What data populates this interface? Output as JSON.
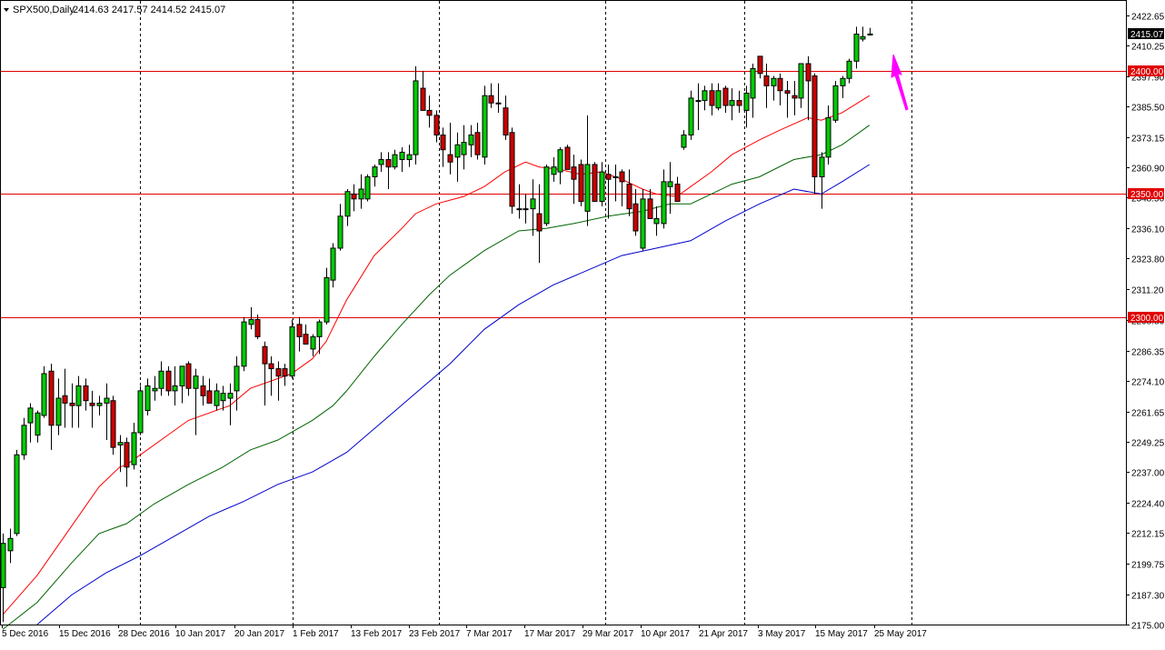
{
  "header": {
    "symbol_timeframe": "SPX500,Daily",
    "ohlc": "2414.63 2417.57 2414.52 2415.07"
  },
  "colors": {
    "background": "#ffffff",
    "frame": "#000000",
    "bull_candle": "#00cc00",
    "bear_candle": "#cc0000",
    "wick": "#000000",
    "ma_fast": "#ff0000",
    "ma_mid": "#006400",
    "ma_slow": "#0000cc",
    "level_line": "#e00000",
    "arrow": "#ff00ff"
  },
  "chart_data": {
    "type": "candlestick",
    "title": "",
    "xlabel": "",
    "ylabel": "",
    "ylim": [
      2175.0,
      2428.5
    ],
    "y_ticks": [
      "2422.65",
      "2410.25",
      "2397.90",
      "2385.50",
      "2373.15",
      "2360.90",
      "2348.50",
      "2336.10",
      "2323.80",
      "2311.20",
      "2298.80",
      "2286.35",
      "2274.10",
      "2261.65",
      "2249.25",
      "2237.00",
      "2224.40",
      "2212.15",
      "2199.75",
      "2187.30",
      "2175.00"
    ],
    "x_ticks": [
      "5 Dec 2016",
      "15 Dec 2016",
      "28 Dec 2016",
      "10 Jan 2017",
      "20 Jan 2017",
      "1 Feb 2017",
      "13 Feb 2017",
      "23 Feb 2017",
      "7 Mar 2017",
      "17 Mar 2017",
      "29 Mar 2017",
      "10 Apr 2017",
      "21 Apr 2017",
      "3 May 2017",
      "15 May 2017",
      "25 May 2017"
    ],
    "candles": [
      {
        "o": 2190,
        "h": 2212,
        "l": 2176,
        "c": 2208
      },
      {
        "o": 2205,
        "h": 2214,
        "l": 2200,
        "c": 2210
      },
      {
        "o": 2212,
        "h": 2246,
        "l": 2211,
        "c": 2244
      },
      {
        "o": 2244,
        "h": 2259,
        "l": 2242,
        "c": 2256
      },
      {
        "o": 2257,
        "h": 2265,
        "l": 2249,
        "c": 2263
      },
      {
        "o": 2252,
        "h": 2262,
        "l": 2249,
        "c": 2261
      },
      {
        "o": 2260,
        "h": 2280,
        "l": 2259,
        "c": 2277
      },
      {
        "o": 2278,
        "h": 2281,
        "l": 2246,
        "c": 2256
      },
      {
        "o": 2256,
        "h": 2275,
        "l": 2252,
        "c": 2267
      },
      {
        "o": 2268,
        "h": 2279,
        "l": 2255,
        "c": 2265
      },
      {
        "o": 2265,
        "h": 2273,
        "l": 2255,
        "c": 2264
      },
      {
        "o": 2264,
        "h": 2276,
        "l": 2255,
        "c": 2272
      },
      {
        "o": 2272,
        "h": 2275,
        "l": 2262,
        "c": 2266
      },
      {
        "o": 2265,
        "h": 2270,
        "l": 2255,
        "c": 2264
      },
      {
        "o": 2264,
        "h": 2268,
        "l": 2260,
        "c": 2265
      },
      {
        "o": 2265,
        "h": 2273,
        "l": 2250,
        "c": 2267
      },
      {
        "o": 2266,
        "h": 2268,
        "l": 2244,
        "c": 2247
      },
      {
        "o": 2248,
        "h": 2252,
        "l": 2237,
        "c": 2249
      },
      {
        "o": 2249,
        "h": 2251,
        "l": 2231,
        "c": 2239
      },
      {
        "o": 2240,
        "h": 2257,
        "l": 2238,
        "c": 2253
      },
      {
        "o": 2253,
        "h": 2272,
        "l": 2252,
        "c": 2270
      },
      {
        "o": 2262,
        "h": 2275,
        "l": 2260,
        "c": 2272
      },
      {
        "o": 2270,
        "h": 2276,
        "l": 2266,
        "c": 2271
      },
      {
        "o": 2271,
        "h": 2282,
        "l": 2268,
        "c": 2278
      },
      {
        "o": 2278,
        "h": 2280,
        "l": 2268,
        "c": 2270
      },
      {
        "o": 2270,
        "h": 2280,
        "l": 2264,
        "c": 2272
      },
      {
        "o": 2272,
        "h": 2279,
        "l": 2265,
        "c": 2280
      },
      {
        "o": 2281,
        "h": 2282,
        "l": 2268,
        "c": 2271
      },
      {
        "o": 2271,
        "h": 2279,
        "l": 2252,
        "c": 2276
      },
      {
        "o": 2272,
        "h": 2276,
        "l": 2264,
        "c": 2268
      },
      {
        "o": 2270,
        "h": 2275,
        "l": 2265,
        "c": 2265
      },
      {
        "o": 2264,
        "h": 2273,
        "l": 2262,
        "c": 2270
      },
      {
        "o": 2266,
        "h": 2272,
        "l": 2262,
        "c": 2269
      },
      {
        "o": 2267,
        "h": 2273,
        "l": 2256,
        "c": 2269
      },
      {
        "o": 2270,
        "h": 2284,
        "l": 2262,
        "c": 2280
      },
      {
        "o": 2280,
        "h": 2300,
        "l": 2278,
        "c": 2298
      },
      {
        "o": 2297,
        "h": 2304,
        "l": 2295,
        "c": 2299
      },
      {
        "o": 2299,
        "h": 2301,
        "l": 2291,
        "c": 2292
      },
      {
        "o": 2288,
        "h": 2290,
        "l": 2264,
        "c": 2281
      },
      {
        "o": 2281,
        "h": 2284,
        "l": 2268,
        "c": 2279
      },
      {
        "o": 2279,
        "h": 2282,
        "l": 2266,
        "c": 2276
      },
      {
        "o": 2279,
        "h": 2281,
        "l": 2272,
        "c": 2276
      },
      {
        "o": 2276,
        "h": 2299,
        "l": 2275,
        "c": 2296
      },
      {
        "o": 2297,
        "h": 2300,
        "l": 2286,
        "c": 2292
      },
      {
        "o": 2293,
        "h": 2297,
        "l": 2289,
        "c": 2289
      },
      {
        "o": 2287,
        "h": 2293,
        "l": 2284,
        "c": 2292
      },
      {
        "o": 2292,
        "h": 2299,
        "l": 2285,
        "c": 2298
      },
      {
        "o": 2298,
        "h": 2320,
        "l": 2297,
        "c": 2316
      },
      {
        "o": 2315,
        "h": 2330,
        "l": 2312,
        "c": 2328
      },
      {
        "o": 2328,
        "h": 2346,
        "l": 2327,
        "c": 2341
      },
      {
        "o": 2341,
        "h": 2352,
        "l": 2337,
        "c": 2351
      },
      {
        "o": 2350,
        "h": 2354,
        "l": 2343,
        "c": 2348
      },
      {
        "o": 2348,
        "h": 2358,
        "l": 2344,
        "c": 2352
      },
      {
        "o": 2348,
        "h": 2358,
        "l": 2347,
        "c": 2357
      },
      {
        "o": 2357,
        "h": 2362,
        "l": 2353,
        "c": 2361
      },
      {
        "o": 2362,
        "h": 2367,
        "l": 2359,
        "c": 2364
      },
      {
        "o": 2364,
        "h": 2367,
        "l": 2352,
        "c": 2361
      },
      {
        "o": 2361,
        "h": 2368,
        "l": 2360,
        "c": 2366
      },
      {
        "o": 2364,
        "h": 2369,
        "l": 2359,
        "c": 2367
      },
      {
        "o": 2364,
        "h": 2370,
        "l": 2361,
        "c": 2366
      },
      {
        "o": 2366,
        "h": 2402,
        "l": 2362,
        "c": 2396
      },
      {
        "o": 2393,
        "h": 2400,
        "l": 2385,
        "c": 2384
      },
      {
        "o": 2384,
        "h": 2390,
        "l": 2377,
        "c": 2382
      },
      {
        "o": 2382,
        "h": 2384,
        "l": 2371,
        "c": 2374
      },
      {
        "o": 2374,
        "h": 2377,
        "l": 2361,
        "c": 2368
      },
      {
        "o": 2366,
        "h": 2379,
        "l": 2358,
        "c": 2363
      },
      {
        "o": 2365,
        "h": 2375,
        "l": 2355,
        "c": 2370
      },
      {
        "o": 2366,
        "h": 2378,
        "l": 2360,
        "c": 2371
      },
      {
        "o": 2370,
        "h": 2378,
        "l": 2365,
        "c": 2374
      },
      {
        "o": 2375,
        "h": 2379,
        "l": 2364,
        "c": 2366
      },
      {
        "o": 2365,
        "h": 2394,
        "l": 2362,
        "c": 2390
      },
      {
        "o": 2390,
        "h": 2395,
        "l": 2385,
        "c": 2387
      },
      {
        "o": 2387,
        "h": 2395,
        "l": 2383,
        "c": 2387
      },
      {
        "o": 2385,
        "h": 2390,
        "l": 2372,
        "c": 2374
      },
      {
        "o": 2375,
        "h": 2377,
        "l": 2342,
        "c": 2345
      },
      {
        "o": 2344,
        "h": 2354,
        "l": 2340,
        "c": 2344
      },
      {
        "o": 2344,
        "h": 2350,
        "l": 2338,
        "c": 2344
      },
      {
        "o": 2344,
        "h": 2356,
        "l": 2333,
        "c": 2348
      },
      {
        "o": 2342,
        "h": 2354,
        "l": 2322,
        "c": 2335
      },
      {
        "o": 2338,
        "h": 2362,
        "l": 2337,
        "c": 2361
      },
      {
        "o": 2358,
        "h": 2365,
        "l": 2355,
        "c": 2361
      },
      {
        "o": 2359,
        "h": 2369,
        "l": 2354,
        "c": 2368
      },
      {
        "o": 2369,
        "h": 2370,
        "l": 2360,
        "c": 2360
      },
      {
        "o": 2361,
        "h": 2366,
        "l": 2346,
        "c": 2356
      },
      {
        "o": 2362,
        "h": 2364,
        "l": 2345,
        "c": 2347
      },
      {
        "o": 2343,
        "h": 2382,
        "l": 2337,
        "c": 2362
      },
      {
        "o": 2362,
        "h": 2363,
        "l": 2347,
        "c": 2347
      },
      {
        "o": 2347,
        "h": 2363,
        "l": 2345,
        "c": 2359
      },
      {
        "o": 2358,
        "h": 2362,
        "l": 2340,
        "c": 2356
      },
      {
        "o": 2357,
        "h": 2362,
        "l": 2347,
        "c": 2357
      },
      {
        "o": 2359,
        "h": 2360,
        "l": 2345,
        "c": 2355
      },
      {
        "o": 2354,
        "h": 2360,
        "l": 2341,
        "c": 2344
      },
      {
        "o": 2346,
        "h": 2352,
        "l": 2333,
        "c": 2335
      },
      {
        "o": 2328,
        "h": 2352,
        "l": 2327,
        "c": 2348
      },
      {
        "o": 2348,
        "h": 2352,
        "l": 2340,
        "c": 2340
      },
      {
        "o": 2338,
        "h": 2345,
        "l": 2333,
        "c": 2340
      },
      {
        "o": 2338,
        "h": 2360,
        "l": 2336,
        "c": 2355
      },
      {
        "o": 2353,
        "h": 2363,
        "l": 2342,
        "c": 2355
      },
      {
        "o": 2354,
        "h": 2357,
        "l": 2347,
        "c": 2347
      },
      {
        "o": 2369,
        "h": 2376,
        "l": 2368,
        "c": 2374
      },
      {
        "o": 2374,
        "h": 2392,
        "l": 2372,
        "c": 2389
      },
      {
        "o": 2388,
        "h": 2395,
        "l": 2376,
        "c": 2388
      },
      {
        "o": 2388,
        "h": 2394,
        "l": 2384,
        "c": 2392
      },
      {
        "o": 2392,
        "h": 2395,
        "l": 2382,
        "c": 2386
      },
      {
        "o": 2385,
        "h": 2395,
        "l": 2384,
        "c": 2392
      },
      {
        "o": 2393,
        "h": 2394,
        "l": 2383,
        "c": 2386
      },
      {
        "o": 2386,
        "h": 2393,
        "l": 2380,
        "c": 2388
      },
      {
        "o": 2388,
        "h": 2392,
        "l": 2383,
        "c": 2386
      },
      {
        "o": 2384,
        "h": 2394,
        "l": 2377,
        "c": 2391
      },
      {
        "o": 2389,
        "h": 2403,
        "l": 2381,
        "c": 2401
      },
      {
        "o": 2406,
        "h": 2406,
        "l": 2397,
        "c": 2399
      },
      {
        "o": 2398,
        "h": 2403,
        "l": 2385,
        "c": 2394
      },
      {
        "o": 2394,
        "h": 2398,
        "l": 2388,
        "c": 2397
      },
      {
        "o": 2397,
        "h": 2399,
        "l": 2386,
        "c": 2392
      },
      {
        "o": 2392,
        "h": 2396,
        "l": 2381,
        "c": 2391
      },
      {
        "o": 2390,
        "h": 2396,
        "l": 2382,
        "c": 2389
      },
      {
        "o": 2389,
        "h": 2403,
        "l": 2385,
        "c": 2403
      },
      {
        "o": 2403,
        "h": 2406,
        "l": 2380,
        "c": 2396
      },
      {
        "o": 2398,
        "h": 2399,
        "l": 2350,
        "c": 2357
      },
      {
        "o": 2357,
        "h": 2367,
        "l": 2344,
        "c": 2365
      },
      {
        "o": 2365,
        "h": 2386,
        "l": 2362,
        "c": 2381
      },
      {
        "o": 2380,
        "h": 2396,
        "l": 2379,
        "c": 2394
      },
      {
        "o": 2394,
        "h": 2398,
        "l": 2389,
        "c": 2397
      },
      {
        "o": 2397,
        "h": 2405,
        "l": 2395,
        "c": 2404
      },
      {
        "o": 2404,
        "h": 2418,
        "l": 2401,
        "c": 2415
      },
      {
        "o": 2413,
        "h": 2418,
        "l": 2412,
        "c": 2414
      },
      {
        "o": 2414.63,
        "h": 2417.57,
        "l": 2414.52,
        "c": 2415.07
      }
    ],
    "series": [
      {
        "name": "",
        "color": "#ff0000",
        "points": [
          [
            0,
            2179
          ],
          [
            5,
            2195
          ],
          [
            10,
            2215
          ],
          [
            14,
            2231
          ],
          [
            17,
            2239
          ],
          [
            18,
            2240
          ],
          [
            20,
            2244
          ],
          [
            24,
            2252
          ],
          [
            27,
            2258
          ],
          [
            33,
            2264
          ],
          [
            36,
            2271
          ],
          [
            39,
            2274
          ],
          [
            42,
            2277
          ],
          [
            45,
            2283
          ],
          [
            47,
            2290
          ],
          [
            50,
            2307
          ],
          [
            54,
            2325
          ],
          [
            58,
            2336
          ],
          [
            60,
            2342
          ],
          [
            63,
            2346
          ],
          [
            67,
            2349
          ],
          [
            70,
            2353
          ],
          [
            73,
            2359
          ],
          [
            76,
            2363
          ],
          [
            78,
            2361
          ],
          [
            81,
            2360
          ],
          [
            84,
            2358
          ],
          [
            87,
            2359
          ],
          [
            90,
            2356
          ],
          [
            93,
            2352
          ],
          [
            95,
            2350
          ],
          [
            98,
            2349
          ],
          [
            100,
            2353
          ],
          [
            103,
            2359
          ],
          [
            106,
            2366
          ],
          [
            110,
            2372
          ],
          [
            113,
            2376
          ],
          [
            117,
            2381
          ],
          [
            119,
            2380
          ],
          [
            122,
            2383
          ],
          [
            126,
            2390
          ]
        ]
      },
      {
        "name": "",
        "color": "#006400",
        "points": [
          [
            0,
            2173
          ],
          [
            5,
            2184
          ],
          [
            10,
            2200
          ],
          [
            14,
            2212
          ],
          [
            18,
            2216
          ],
          [
            22,
            2224
          ],
          [
            27,
            2232
          ],
          [
            32,
            2239
          ],
          [
            36,
            2246
          ],
          [
            40,
            2250
          ],
          [
            45,
            2258
          ],
          [
            48,
            2264
          ],
          [
            50,
            2270
          ],
          [
            54,
            2284
          ],
          [
            58,
            2297
          ],
          [
            62,
            2309
          ],
          [
            65,
            2317
          ],
          [
            70,
            2327
          ],
          [
            75,
            2335
          ],
          [
            79,
            2336
          ],
          [
            83,
            2338
          ],
          [
            88,
            2341
          ],
          [
            93,
            2343
          ],
          [
            97,
            2346
          ],
          [
            100,
            2346
          ],
          [
            103,
            2350
          ],
          [
            106,
            2354
          ],
          [
            110,
            2357
          ],
          [
            115,
            2364
          ],
          [
            119,
            2366
          ],
          [
            122,
            2370
          ],
          [
            126,
            2378
          ]
        ]
      },
      {
        "name": "",
        "color": "#0000cc",
        "points": [
          [
            5,
            2175
          ],
          [
            10,
            2187
          ],
          [
            15,
            2196
          ],
          [
            20,
            2203
          ],
          [
            25,
            2211
          ],
          [
            30,
            2219
          ],
          [
            35,
            2225
          ],
          [
            40,
            2232
          ],
          [
            45,
            2237
          ],
          [
            50,
            2245
          ],
          [
            55,
            2257
          ],
          [
            60,
            2269
          ],
          [
            65,
            2281
          ],
          [
            70,
            2295
          ],
          [
            75,
            2305
          ],
          [
            80,
            2313
          ],
          [
            85,
            2319
          ],
          [
            90,
            2325
          ],
          [
            95,
            2328
          ],
          [
            100,
            2331
          ],
          [
            105,
            2339
          ],
          [
            110,
            2346
          ],
          [
            115,
            2352
          ],
          [
            119,
            2350
          ],
          [
            122,
            2355
          ],
          [
            126,
            2362
          ]
        ]
      }
    ],
    "levels": [
      {
        "value": 2400.0,
        "label": "2400.00"
      },
      {
        "value": 2350.0,
        "label": "2350.00"
      },
      {
        "value": 2300.0,
        "label": "2300.00"
      }
    ],
    "current_price_label": "2415.07",
    "current_price": 2415.07
  }
}
